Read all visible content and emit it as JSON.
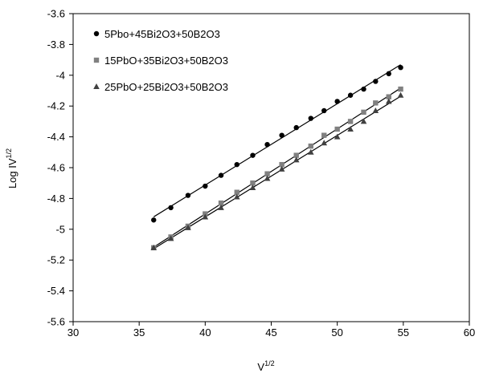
{
  "chart_data": {
    "type": "scatter",
    "title": "",
    "xlabel": "V",
    "xlabel_superscript": "1/2",
    "ylabel": "Log IV",
    "ylabel_superscript": "1/2",
    "xlim": [
      30,
      60
    ],
    "ylim": [
      -5.6,
      -3.6
    ],
    "x_ticks": [
      30,
      35,
      40,
      45,
      50,
      55,
      60
    ],
    "y_ticks": [
      -3.6,
      -3.8,
      -4,
      -4.2,
      -4.4,
      -4.6,
      -4.8,
      -5,
      -5.2,
      -5.4,
      -5.6
    ],
    "grid": false,
    "legend_position": "top-left",
    "series": [
      {
        "name": "5Pbo+45Bi2O3+50B2O3",
        "marker": "circle",
        "color": "#000000",
        "x": [
          36.1,
          37.4,
          38.7,
          40.0,
          41.2,
          42.4,
          43.6,
          44.7,
          45.8,
          46.9,
          48.0,
          49.0,
          50.0,
          51.0,
          52.0,
          52.9,
          53.9,
          54.8
        ],
        "y": [
          -4.94,
          -4.86,
          -4.78,
          -4.72,
          -4.65,
          -4.58,
          -4.52,
          -4.45,
          -4.39,
          -4.34,
          -4.28,
          -4.23,
          -4.17,
          -4.13,
          -4.09,
          -4.04,
          -3.99,
          -3.95
        ]
      },
      {
        "name": "15PbO+35Bi2O3+50B2O3",
        "marker": "square",
        "color": "#808080",
        "x": [
          36.1,
          37.4,
          38.7,
          40.0,
          41.2,
          42.4,
          43.6,
          44.7,
          45.8,
          46.9,
          48.0,
          49.0,
          50.0,
          51.0,
          52.0,
          52.9,
          53.9,
          54.8
        ],
        "y": [
          -5.12,
          -5.05,
          -4.98,
          -4.9,
          -4.83,
          -4.76,
          -4.7,
          -4.64,
          -4.58,
          -4.52,
          -4.46,
          -4.39,
          -4.35,
          -4.3,
          -4.24,
          -4.18,
          -4.14,
          -4.09
        ]
      },
      {
        "name": "25PbO+25Bi2O3+50B2O3",
        "marker": "triangle",
        "color": "#404040",
        "x": [
          36.1,
          37.4,
          38.7,
          40.0,
          41.2,
          42.4,
          43.6,
          44.7,
          45.8,
          46.9,
          48.0,
          49.0,
          50.0,
          51.0,
          52.0,
          52.9,
          53.9,
          54.8
        ],
        "y": [
          -5.12,
          -5.06,
          -4.99,
          -4.92,
          -4.86,
          -4.79,
          -4.73,
          -4.67,
          -4.61,
          -4.55,
          -4.5,
          -4.44,
          -4.4,
          -4.35,
          -4.3,
          -4.23,
          -4.17,
          -4.13
        ]
      }
    ]
  }
}
